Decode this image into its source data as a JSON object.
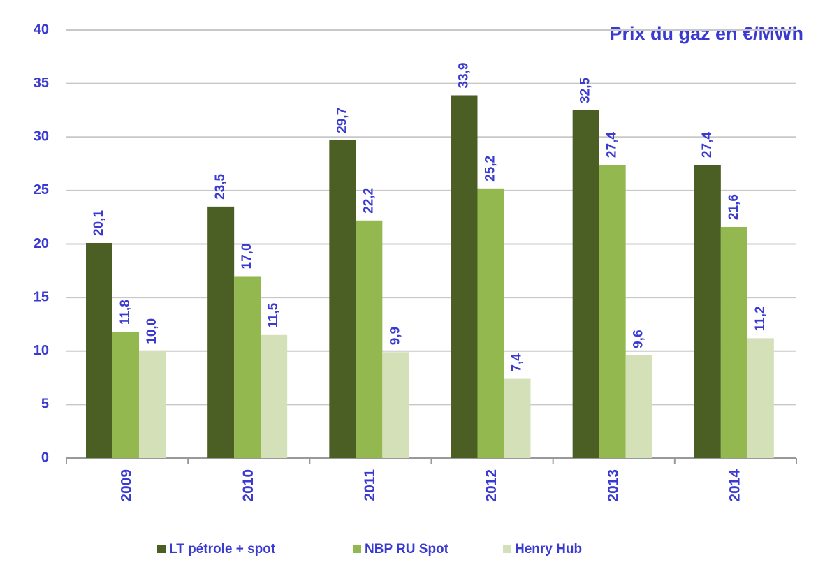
{
  "chart_data": {
    "type": "bar",
    "title": "Prix du gaz en  €/MWh",
    "categories": [
      "2009",
      "2010",
      "2011",
      "2012",
      "2013",
      "2014"
    ],
    "series": [
      {
        "name": "LT pétrole + spot",
        "color": "#4b5f24",
        "values": [
          20.1,
          23.5,
          29.7,
          33.9,
          32.5,
          27.4
        ],
        "value_labels": [
          "20,1",
          "23,5",
          "29,7",
          "33,9",
          "32,5",
          "27,4"
        ]
      },
      {
        "name": "NBP RU Spot",
        "color": "#93b84f",
        "values": [
          11.8,
          17.0,
          22.2,
          25.2,
          27.4,
          21.6
        ],
        "value_labels": [
          "11,8",
          "17,0",
          "22,2",
          "25,2",
          "27,4",
          "21,6"
        ]
      },
      {
        "name": "Henry Hub",
        "color": "#d4e0b8",
        "values": [
          10.0,
          11.5,
          9.9,
          7.4,
          9.6,
          11.2
        ],
        "value_labels": [
          "10,0",
          "11,5",
          "9,9",
          "7,4",
          "9,6",
          "11,2"
        ]
      }
    ],
    "ylim": [
      0,
      40
    ],
    "yticks": [
      0,
      5,
      10,
      15,
      20,
      25,
      30,
      35,
      40
    ],
    "grid": true
  }
}
